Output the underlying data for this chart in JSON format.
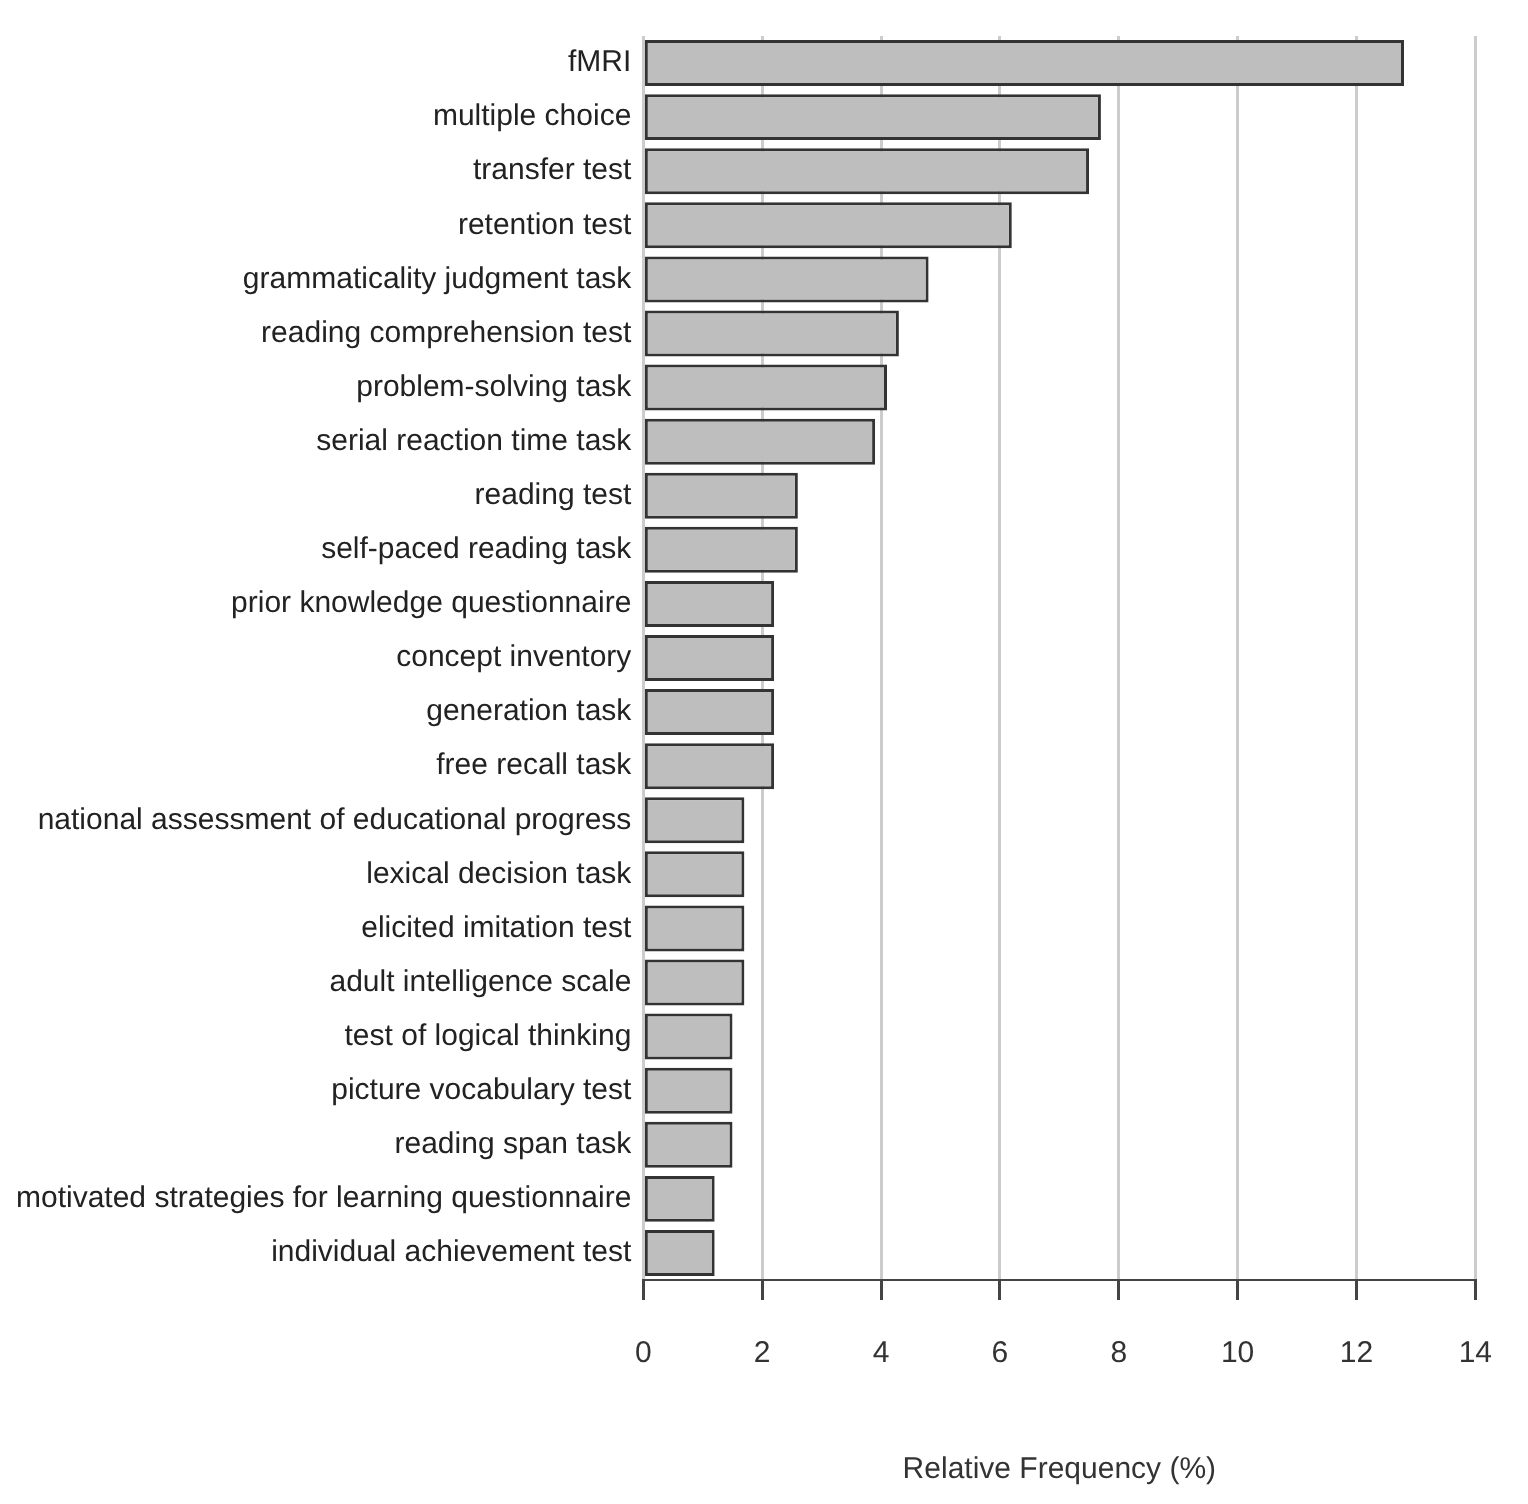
{
  "chart_data": {
    "type": "bar",
    "orientation": "horizontal",
    "xlabel": "Relative Frequency (%)",
    "categories": [
      "fMRI",
      "multiple choice",
      "transfer test",
      "retention test",
      "grammaticality judgment task",
      "reading comprehension test",
      "problem-solving task",
      "serial reaction time task",
      "reading test",
      "self-paced reading task",
      "prior knowledge questionnaire",
      "concept inventory",
      "generation task",
      "free recall task",
      "national assessment of educational progress",
      "lexical decision task",
      "elicited imitation test",
      "adult intelligence scale",
      "test of logical thinking",
      "picture vocabulary test",
      "reading span task",
      "motivated strategies for learning questionnaire",
      "individual achievement test"
    ],
    "values": [
      12.8,
      7.7,
      7.5,
      6.2,
      4.8,
      4.3,
      4.1,
      3.9,
      2.6,
      2.6,
      2.2,
      2.2,
      2.2,
      2.2,
      1.7,
      1.7,
      1.7,
      1.7,
      1.5,
      1.5,
      1.5,
      1.2,
      1.2
    ],
    "color": "#bebebe",
    "xlim": [
      0,
      14
    ],
    "xticks": [
      0,
      2,
      4,
      6,
      8,
      10,
      12,
      14
    ],
    "grid": "x"
  }
}
